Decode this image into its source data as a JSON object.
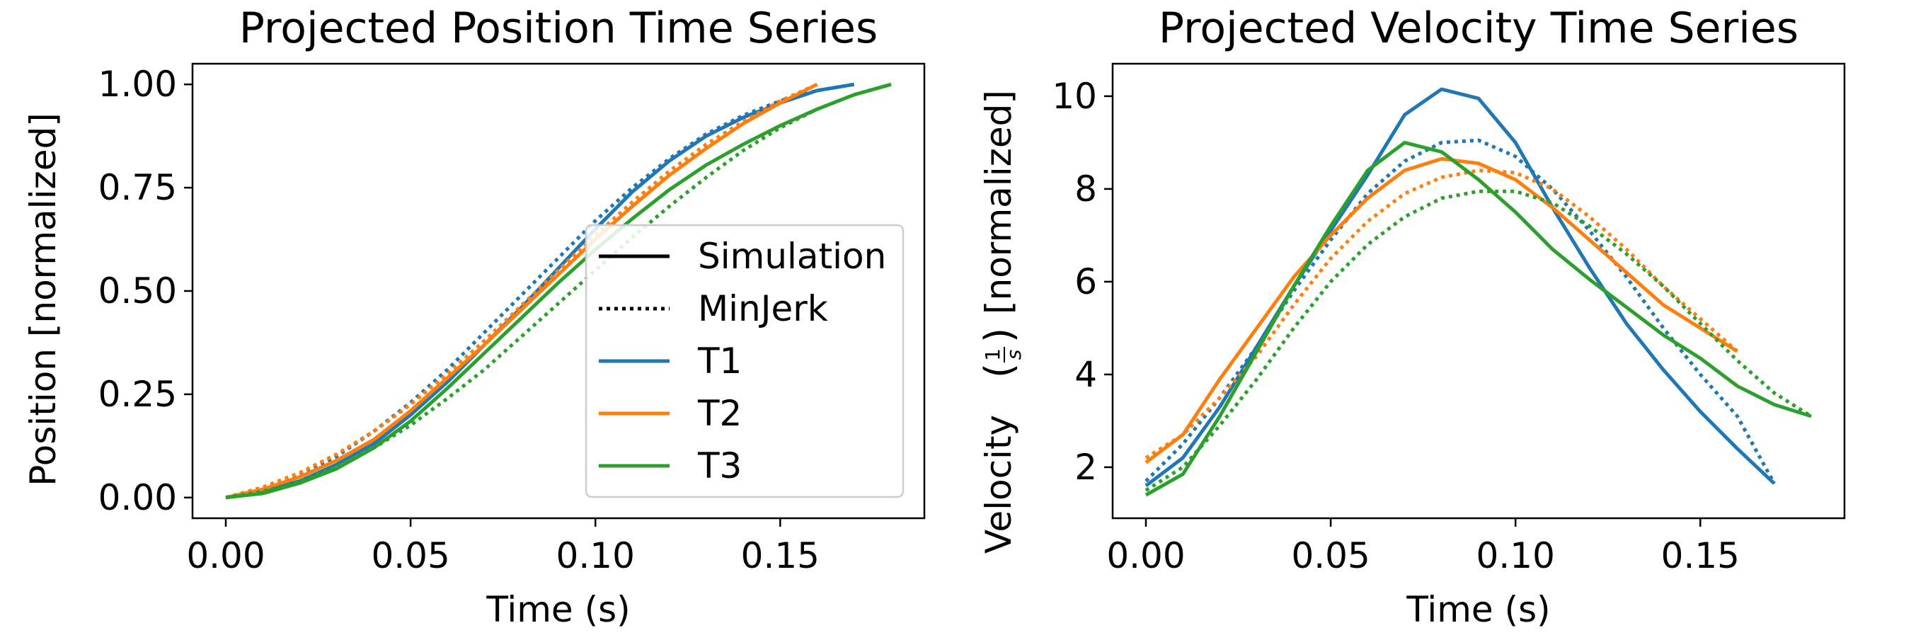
{
  "chart_data": [
    {
      "type": "line",
      "title": "Projected Position Time Series",
      "xlabel": "Time (s)",
      "ylabel": "Position [normalized]",
      "xlim": [
        -0.009,
        0.189
      ],
      "ylim": [
        -0.05,
        1.05
      ],
      "xticks": [
        0.0,
        0.05,
        0.1,
        0.15
      ],
      "xtick_labels": [
        "0.00",
        "0.05",
        "0.10",
        "0.15"
      ],
      "yticks": [
        0.0,
        0.25,
        0.5,
        0.75,
        1.0
      ],
      "ytick_labels": [
        "0.00",
        "0.25",
        "0.50",
        "0.75",
        "1.00"
      ],
      "grid": false,
      "legend_position": "lower-right",
      "legend": [
        {
          "label": "Simulation",
          "color": "#000000",
          "style": "solid"
        },
        {
          "label": "MinJerk",
          "color": "#000000",
          "style": "dotted"
        },
        {
          "label": "T1",
          "color": "#1f77b4",
          "style": "solid"
        },
        {
          "label": "T2",
          "color": "#ff7f0e",
          "style": "solid"
        },
        {
          "label": "T3",
          "color": "#2ca02c",
          "style": "solid"
        }
      ],
      "series": [
        {
          "label": "T1",
          "style": "solid",
          "color": "#1f77b4",
          "x": [
            0,
            0.01,
            0.02,
            0.03,
            0.04,
            0.05,
            0.06,
            0.07,
            0.08,
            0.09,
            0.1,
            0.11,
            0.12,
            0.13,
            0.14,
            0.15,
            0.16,
            0.17
          ],
          "y": [
            0,
            0.015,
            0.04,
            0.08,
            0.13,
            0.2,
            0.28,
            0.37,
            0.46,
            0.555,
            0.65,
            0.74,
            0.815,
            0.875,
            0.92,
            0.955,
            0.985,
            1.0
          ]
        },
        {
          "label": "T1",
          "style": "dotted",
          "color": "#1f77b4",
          "x": [
            0,
            0.01,
            0.02,
            0.03,
            0.04,
            0.05,
            0.06,
            0.07,
            0.08,
            0.09,
            0.1,
            0.11,
            0.12,
            0.13,
            0.14,
            0.15,
            0.16,
            0.17
          ],
          "y": [
            0,
            0.02,
            0.055,
            0.1,
            0.16,
            0.23,
            0.31,
            0.4,
            0.49,
            0.58,
            0.67,
            0.75,
            0.82,
            0.88,
            0.925,
            0.96,
            0.985,
            1.0
          ]
        },
        {
          "label": "T2",
          "style": "solid",
          "color": "#ff7f0e",
          "x": [
            0,
            0.01,
            0.02,
            0.03,
            0.04,
            0.05,
            0.06,
            0.07,
            0.08,
            0.09,
            0.1,
            0.11,
            0.12,
            0.13,
            0.14,
            0.15,
            0.16
          ],
          "y": [
            0,
            0.02,
            0.05,
            0.09,
            0.14,
            0.21,
            0.29,
            0.37,
            0.455,
            0.54,
            0.625,
            0.705,
            0.78,
            0.845,
            0.905,
            0.955,
            1.0
          ]
        },
        {
          "label": "T2",
          "style": "dotted",
          "color": "#ff7f0e",
          "x": [
            0,
            0.01,
            0.02,
            0.03,
            0.04,
            0.05,
            0.06,
            0.07,
            0.08,
            0.09,
            0.1,
            0.11,
            0.12,
            0.13,
            0.14,
            0.15,
            0.16
          ],
          "y": [
            0,
            0.025,
            0.06,
            0.105,
            0.16,
            0.225,
            0.3,
            0.38,
            0.465,
            0.55,
            0.635,
            0.715,
            0.79,
            0.855,
            0.91,
            0.96,
            1.0
          ]
        },
        {
          "label": "T3",
          "style": "solid",
          "color": "#2ca02c",
          "x": [
            0,
            0.01,
            0.02,
            0.03,
            0.04,
            0.05,
            0.06,
            0.07,
            0.08,
            0.09,
            0.1,
            0.11,
            0.12,
            0.13,
            0.14,
            0.15,
            0.16,
            0.17,
            0.18
          ],
          "y": [
            0,
            0.01,
            0.035,
            0.07,
            0.12,
            0.185,
            0.265,
            0.35,
            0.435,
            0.52,
            0.6,
            0.675,
            0.745,
            0.805,
            0.855,
            0.9,
            0.94,
            0.975,
            1.0
          ]
        },
        {
          "label": "T3",
          "style": "dotted",
          "color": "#2ca02c",
          "x": [
            0,
            0.01,
            0.02,
            0.03,
            0.04,
            0.05,
            0.06,
            0.07,
            0.08,
            0.09,
            0.1,
            0.11,
            0.12,
            0.13,
            0.14,
            0.15,
            0.16,
            0.17,
            0.18
          ],
          "y": [
            0,
            0.015,
            0.04,
            0.075,
            0.12,
            0.175,
            0.24,
            0.31,
            0.39,
            0.47,
            0.55,
            0.63,
            0.705,
            0.775,
            0.84,
            0.895,
            0.94,
            0.975,
            1.0
          ]
        }
      ]
    },
    {
      "type": "line",
      "title": "Projected Velocity Time Series",
      "xlabel": "Time (s)",
      "ylabel": "Velocity",
      "ylabel_fraction_numerator": "1",
      "ylabel_fraction_denominator": "s",
      "ylabel_unit_suffix": "[normalized]",
      "xlim": [
        -0.009,
        0.189
      ],
      "ylim": [
        0.9,
        10.7
      ],
      "xticks": [
        0.0,
        0.05,
        0.1,
        0.15
      ],
      "xtick_labels": [
        "0.00",
        "0.05",
        "0.10",
        "0.15"
      ],
      "yticks": [
        2,
        4,
        6,
        8,
        10
      ],
      "ytick_labels": [
        "2",
        "4",
        "6",
        "8",
        "10"
      ],
      "grid": false,
      "series": [
        {
          "label": "T1",
          "style": "solid",
          "color": "#1f77b4",
          "x": [
            0,
            0.01,
            0.02,
            0.03,
            0.04,
            0.05,
            0.06,
            0.07,
            0.08,
            0.09,
            0.1,
            0.11,
            0.12,
            0.13,
            0.14,
            0.15,
            0.16,
            0.17
          ],
          "y": [
            1.6,
            2.2,
            3.3,
            4.6,
            5.9,
            7.1,
            8.3,
            9.6,
            10.15,
            9.95,
            9.0,
            7.6,
            6.3,
            5.1,
            4.1,
            3.2,
            2.4,
            1.65
          ]
        },
        {
          "label": "T1",
          "style": "dotted",
          "color": "#1f77b4",
          "x": [
            0,
            0.01,
            0.02,
            0.03,
            0.04,
            0.05,
            0.06,
            0.07,
            0.08,
            0.09,
            0.1,
            0.11,
            0.12,
            0.13,
            0.14,
            0.15,
            0.16,
            0.17
          ],
          "y": [
            1.7,
            2.5,
            3.5,
            4.6,
            5.8,
            6.9,
            7.9,
            8.6,
            9.0,
            9.05,
            8.7,
            8.0,
            7.1,
            6.1,
            5.0,
            4.0,
            3.1,
            1.65
          ]
        },
        {
          "label": "T2",
          "style": "solid",
          "color": "#ff7f0e",
          "x": [
            0,
            0.01,
            0.02,
            0.03,
            0.04,
            0.05,
            0.06,
            0.07,
            0.08,
            0.09,
            0.1,
            0.11,
            0.12,
            0.13,
            0.14,
            0.15,
            0.16
          ],
          "y": [
            2.1,
            2.7,
            3.9,
            5.0,
            6.1,
            7.0,
            7.8,
            8.4,
            8.65,
            8.55,
            8.2,
            7.6,
            6.9,
            6.2,
            5.5,
            5.0,
            4.5
          ]
        },
        {
          "label": "T2",
          "style": "dotted",
          "color": "#ff7f0e",
          "x": [
            0,
            0.01,
            0.02,
            0.03,
            0.04,
            0.05,
            0.06,
            0.07,
            0.08,
            0.09,
            0.1,
            0.11,
            0.12,
            0.13,
            0.14,
            0.15,
            0.16
          ],
          "y": [
            2.2,
            2.7,
            3.5,
            4.4,
            5.5,
            6.5,
            7.3,
            7.9,
            8.25,
            8.4,
            8.35,
            8.0,
            7.4,
            6.7,
            5.9,
            5.2,
            4.5
          ]
        },
        {
          "label": "T3",
          "style": "solid",
          "color": "#2ca02c",
          "x": [
            0,
            0.01,
            0.02,
            0.03,
            0.04,
            0.05,
            0.06,
            0.07,
            0.08,
            0.09,
            0.1,
            0.11,
            0.12,
            0.13,
            0.14,
            0.15,
            0.16,
            0.17,
            0.18
          ],
          "y": [
            1.4,
            1.85,
            3.1,
            4.5,
            5.9,
            7.2,
            8.4,
            9.0,
            8.8,
            8.2,
            7.5,
            6.7,
            6.05,
            5.45,
            4.85,
            4.35,
            3.75,
            3.35,
            3.1
          ]
        },
        {
          "label": "T3",
          "style": "dotted",
          "color": "#2ca02c",
          "x": [
            0,
            0.01,
            0.02,
            0.03,
            0.04,
            0.05,
            0.06,
            0.07,
            0.08,
            0.09,
            0.1,
            0.11,
            0.12,
            0.13,
            0.14,
            0.15,
            0.16,
            0.17,
            0.18
          ],
          "y": [
            1.5,
            2.0,
            2.9,
            3.9,
            5.0,
            6.0,
            6.8,
            7.4,
            7.8,
            7.95,
            7.95,
            7.7,
            7.2,
            6.6,
            5.9,
            5.1,
            4.3,
            3.6,
            3.1
          ]
        }
      ]
    }
  ]
}
